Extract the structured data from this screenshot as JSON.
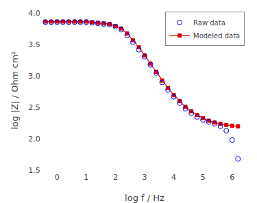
{
  "chart_data": {
    "type": "line",
    "xlabel": "log f / Hz",
    "ylabel": "log |Z| / Ohm cm²",
    "x": [
      -0.4,
      -0.2,
      0.0,
      0.2,
      0.4,
      0.6,
      0.8,
      1.0,
      1.2,
      1.4,
      1.6,
      1.8,
      2.0,
      2.2,
      2.4,
      2.6,
      2.8,
      3.0,
      3.2,
      3.4,
      3.6,
      3.8,
      4.0,
      4.2,
      4.4,
      4.6,
      4.8,
      5.0,
      5.2,
      5.4,
      5.6,
      5.8,
      6.0,
      6.2
    ],
    "series": [
      {
        "name": "Modeled data",
        "color": "#dd0000",
        "marker": "square",
        "line_style": "solid",
        "values": [
          3.87,
          3.87,
          3.87,
          3.87,
          3.87,
          3.87,
          3.87,
          3.87,
          3.86,
          3.85,
          3.84,
          3.83,
          3.8,
          3.76,
          3.68,
          3.57,
          3.46,
          3.33,
          3.2,
          3.07,
          2.93,
          2.81,
          2.7,
          2.6,
          2.51,
          2.44,
          2.38,
          2.33,
          2.29,
          2.26,
          2.24,
          2.22,
          2.21,
          2.2
        ]
      },
      {
        "name": "Raw data",
        "color": "#0000dd",
        "marker": "circle-open",
        "line_style": "none",
        "values": [
          3.86,
          3.86,
          3.86,
          3.86,
          3.86,
          3.86,
          3.86,
          3.86,
          3.85,
          3.84,
          3.83,
          3.82,
          3.79,
          3.74,
          3.65,
          3.54,
          3.42,
          3.31,
          3.18,
          3.05,
          2.9,
          2.78,
          2.67,
          2.57,
          2.48,
          2.41,
          2.35,
          2.3,
          2.27,
          2.24,
          2.2,
          2.13,
          1.98,
          1.68
        ]
      }
    ],
    "xlim": [
      -0.5,
      6.5
    ],
    "ylim": [
      1.5,
      4.05
    ],
    "xticks": [
      0,
      1,
      2,
      3,
      4,
      5,
      6
    ],
    "yticks": [
      1.5,
      {
        "value": 2.0,
        "label": "2.0"
      },
      2.5,
      {
        "value": 3.0,
        "label": "3.0"
      },
      3.5,
      {
        "value": 4.0,
        "label": "4.0"
      }
    ],
    "grid": false,
    "legend": "upper right"
  }
}
